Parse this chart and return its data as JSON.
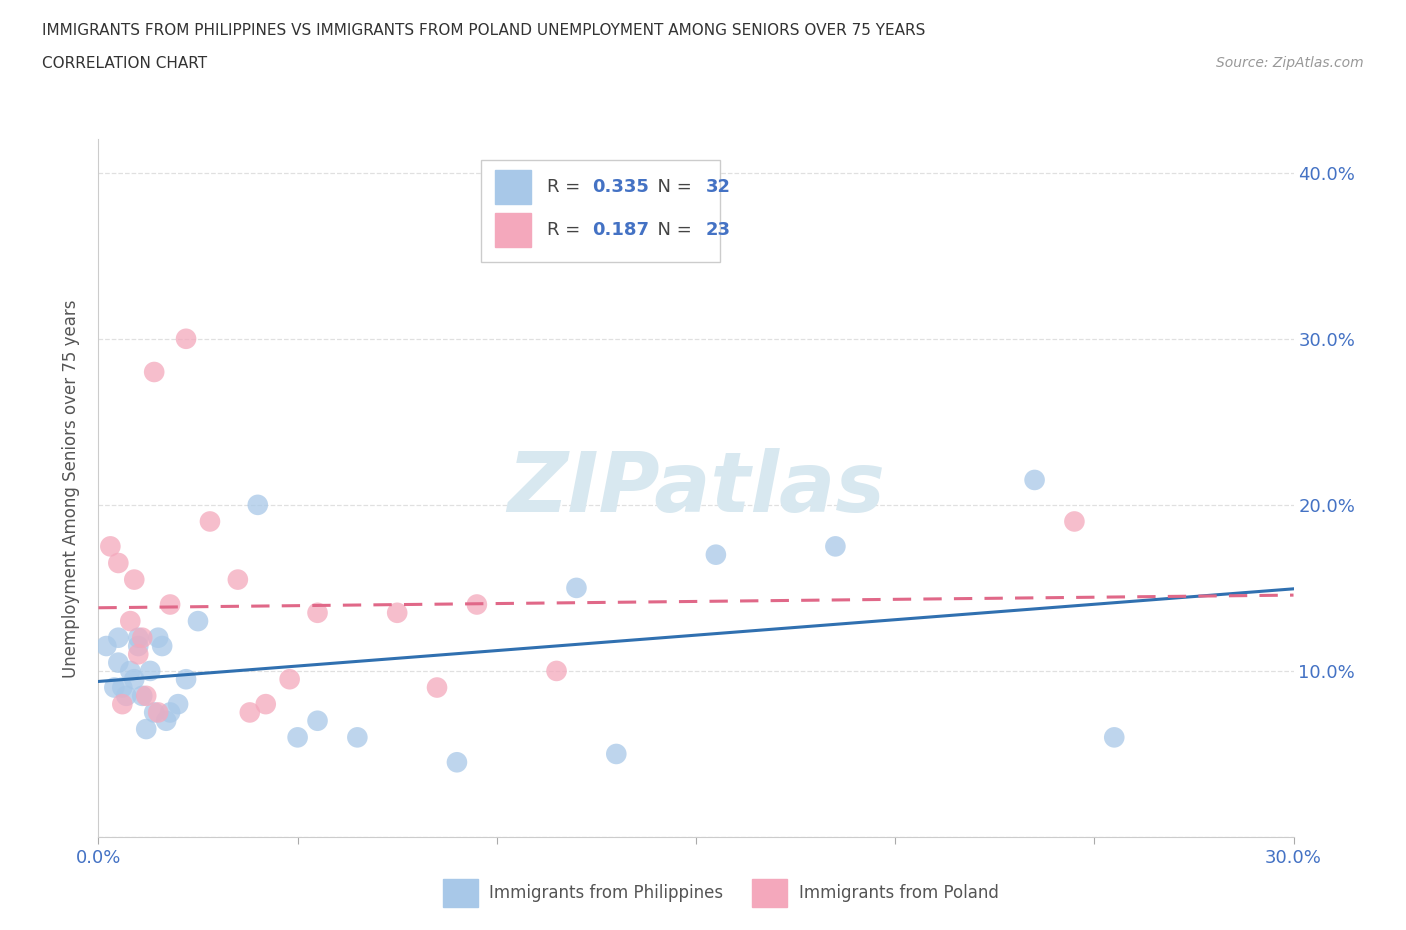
{
  "title_line1": "IMMIGRANTS FROM PHILIPPINES VS IMMIGRANTS FROM POLAND UNEMPLOYMENT AMONG SENIORS OVER 75 YEARS",
  "title_line2": "CORRELATION CHART",
  "source": "Source: ZipAtlas.com",
  "ylabel": "Unemployment Among Seniors over 75 years",
  "xlim": [
    0.0,
    0.3
  ],
  "ylim": [
    0.0,
    0.42
  ],
  "xticks": [
    0.0,
    0.05,
    0.1,
    0.15,
    0.2,
    0.25,
    0.3
  ],
  "yticks": [
    0.0,
    0.1,
    0.2,
    0.3,
    0.4
  ],
  "philippines_color": "#a8c8e8",
  "poland_color": "#f4a8bc",
  "philippines_line_color": "#3070b0",
  "poland_line_color": "#e06888",
  "label_color": "#4472c4",
  "R_philippines": 0.335,
  "N_philippines": 32,
  "R_poland": 0.187,
  "N_poland": 23,
  "philippines_x": [
    0.002,
    0.004,
    0.005,
    0.005,
    0.006,
    0.007,
    0.008,
    0.009,
    0.01,
    0.01,
    0.011,
    0.012,
    0.013,
    0.014,
    0.015,
    0.016,
    0.017,
    0.018,
    0.02,
    0.022,
    0.025,
    0.04,
    0.05,
    0.055,
    0.065,
    0.09,
    0.12,
    0.13,
    0.155,
    0.185,
    0.235,
    0.255
  ],
  "philippines_y": [
    0.115,
    0.09,
    0.12,
    0.105,
    0.09,
    0.085,
    0.1,
    0.095,
    0.115,
    0.12,
    0.085,
    0.065,
    0.1,
    0.075,
    0.12,
    0.115,
    0.07,
    0.075,
    0.08,
    0.095,
    0.13,
    0.2,
    0.06,
    0.07,
    0.06,
    0.045,
    0.15,
    0.05,
    0.17,
    0.175,
    0.215,
    0.06
  ],
  "poland_x": [
    0.003,
    0.005,
    0.006,
    0.008,
    0.009,
    0.01,
    0.011,
    0.012,
    0.014,
    0.015,
    0.018,
    0.022,
    0.028,
    0.035,
    0.038,
    0.042,
    0.048,
    0.055,
    0.075,
    0.085,
    0.095,
    0.115,
    0.245
  ],
  "poland_y": [
    0.175,
    0.165,
    0.08,
    0.13,
    0.155,
    0.11,
    0.12,
    0.085,
    0.28,
    0.075,
    0.14,
    0.3,
    0.19,
    0.155,
    0.075,
    0.08,
    0.095,
    0.135,
    0.135,
    0.09,
    0.14,
    0.1,
    0.19
  ],
  "background_color": "#ffffff",
  "grid_color": "#e0e0e0",
  "watermark_text": "ZIPatlas"
}
